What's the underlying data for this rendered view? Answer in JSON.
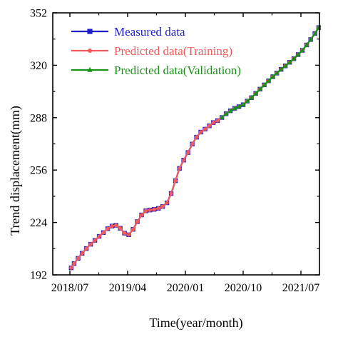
{
  "chart_data": {
    "type": "line",
    "xlabel": "Time(year/month)",
    "ylabel": "Trend displacement(mm)",
    "x_tick_labels": [
      "2018/07",
      "2019/04",
      "2020/01",
      "2020/10",
      "2021/07"
    ],
    "y_tick_labels": [
      "192",
      "224",
      "256",
      "288",
      "320",
      "352"
    ],
    "xlim": [
      0,
      1
    ],
    "ylim": [
      192,
      352
    ],
    "grid": false,
    "legend_position": "top-left",
    "x": [
      0.069,
      0.08,
      0.095,
      0.11,
      0.126,
      0.142,
      0.158,
      0.174,
      0.19,
      0.206,
      0.222,
      0.237,
      0.253,
      0.269,
      0.285,
      0.301,
      0.317,
      0.333,
      0.349,
      0.364,
      0.38,
      0.396,
      0.412,
      0.428,
      0.444,
      0.46,
      0.475,
      0.491,
      0.507,
      0.523,
      0.539,
      0.555,
      0.571,
      0.587,
      0.602,
      0.618,
      0.634,
      0.65,
      0.666,
      0.682,
      0.698,
      0.714,
      0.729,
      0.745,
      0.761,
      0.777,
      0.793,
      0.809,
      0.825,
      0.84,
      0.856,
      0.872,
      0.888,
      0.904,
      0.92,
      0.936,
      0.952,
      0.967,
      0.983,
      0.997
    ],
    "series": [
      {
        "name": "Measured data",
        "color": "#1f1fc8",
        "marker": "square",
        "values": [
          196.3,
          198.9,
          202.1,
          205.2,
          208.1,
          210.7,
          213.1,
          215.5,
          217.8,
          220.2,
          221.8,
          222.3,
          220.5,
          217.5,
          216.5,
          219.8,
          224.5,
          228.6,
          231.1,
          231.6,
          232.0,
          232.6,
          233.8,
          236.0,
          241.7,
          249.5,
          257.0,
          262.1,
          266.7,
          271.9,
          276.1,
          279.2,
          281.0,
          283.0,
          285.0,
          286.2,
          288.1,
          290.4,
          292.2,
          293.7,
          294.7,
          295.9,
          298.1,
          300.2,
          302.8,
          305.4,
          308.0,
          310.5,
          313.0,
          315.2,
          317.5,
          319.6,
          321.8,
          324.0,
          326.5,
          329.1,
          332.4,
          335.7,
          339.4,
          343.0
        ]
      },
      {
        "name": "Predicted data(Training)",
        "color": "#f05a5a",
        "marker": "circle",
        "values": [
          196.3,
          198.9,
          202.1,
          205.2,
          208.1,
          210.7,
          213.1,
          215.5,
          217.8,
          220.2,
          221.8,
          222.3,
          220.5,
          217.5,
          216.5,
          219.8,
          224.5,
          228.6,
          231.1,
          231.6,
          232.0,
          232.6,
          233.8,
          236.0,
          241.7,
          249.5,
          257.0,
          262.1,
          266.7,
          271.9,
          276.1,
          279.2,
          281.0,
          283.0,
          285.0,
          286.2,
          288.1,
          290.4,
          292.2,
          293.7,
          294.7,
          295.9,
          298.1,
          300.2,
          302.8,
          305.4,
          308.0,
          310.5,
          313.0,
          315.2,
          317.5,
          319.6,
          321.8,
          324.0,
          326.5,
          329.1,
          332.4,
          335.7,
          339.4,
          343.0
        ]
      },
      {
        "name": "Predicted data(Validation)",
        "color": "#1a8f1a",
        "marker": "triangle",
        "values": [
          null,
          null,
          null,
          null,
          null,
          null,
          null,
          null,
          null,
          null,
          null,
          null,
          null,
          null,
          null,
          null,
          null,
          null,
          null,
          null,
          null,
          null,
          null,
          null,
          null,
          null,
          null,
          null,
          null,
          null,
          null,
          null,
          null,
          null,
          null,
          null,
          288.1,
          290.4,
          292.2,
          293.7,
          294.7,
          295.9,
          298.1,
          300.2,
          302.8,
          305.4,
          308.0,
          310.5,
          313.0,
          315.2,
          317.5,
          319.6,
          321.8,
          324.0,
          326.5,
          329.1,
          332.4,
          335.7,
          339.4,
          343.0
        ]
      }
    ]
  }
}
